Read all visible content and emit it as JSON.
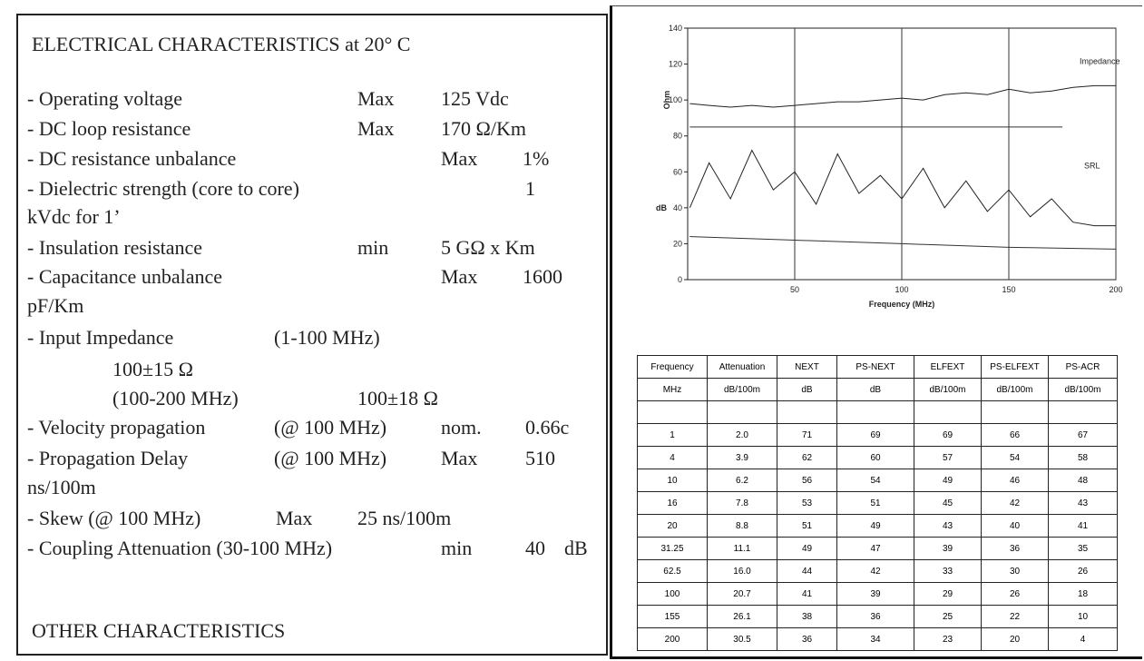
{
  "left": {
    "title": "ELECTRICAL CHARACTERISTICS at 20° C",
    "lines": [
      [
        "- Operating voltage",
        "Max",
        "125 Vdc"
      ],
      [
        "- DC loop resistance",
        "Max",
        "170 Ω/Km"
      ],
      [
        "- DC resistance unbalance",
        "Max",
        "1%"
      ],
      [
        "- Dielectric strength (core to core)",
        "1"
      ],
      [
        "kVdc for 1’"
      ],
      [
        "- Insulation resistance",
        "min",
        "5 GΩ x Km"
      ],
      [
        "- Capacitance unbalance",
        "Max",
        "1600"
      ],
      [
        "pF/Km"
      ],
      [
        "- Input Impedance",
        "(1-100 MHz)"
      ],
      [
        "100±15 Ω"
      ],
      [
        "(100-200 MHz)",
        "100±18 Ω"
      ],
      [
        "- Velocity propagation",
        "(@ 100 MHz)",
        "nom.",
        "0.66c"
      ],
      [
        "- Propagation Delay",
        "(@ 100 MHz)",
        "Max",
        "510"
      ],
      [
        "ns/100m"
      ],
      [
        "- Skew (@ 100 MHz)",
        "Max",
        "25 ns/100m"
      ],
      [
        "- Coupling Attenuation (30-100 MHz)",
        "min",
        "40",
        "dB"
      ]
    ],
    "footer": "OTHER CHARACTERISTICS"
  },
  "chart_data": {
    "type": "line",
    "xlabel": "Frequency (MHz)",
    "ylabel": "Ohm",
    "ylabel2": "dB",
    "xlim": [
      0,
      200
    ],
    "xticks": [
      50,
      100,
      150,
      200
    ],
    "ylim": [
      0,
      140
    ],
    "yticks": [
      0,
      20,
      40,
      60,
      80,
      100,
      120,
      140
    ],
    "grid": true,
    "series": [
      {
        "name": "Impedance",
        "color": "#222",
        "x": [
          1,
          10,
          20,
          30,
          40,
          50,
          60,
          70,
          80,
          90,
          100,
          110,
          120,
          130,
          140,
          150,
          160,
          170,
          180,
          190,
          200
        ],
        "values": [
          98,
          97,
          96,
          97,
          96,
          97,
          98,
          99,
          99,
          100,
          101,
          100,
          103,
          104,
          103,
          106,
          104,
          105,
          107,
          108,
          108
        ]
      },
      {
        "name": "SRL",
        "color": "#222",
        "x": [
          1,
          10,
          20,
          30,
          40,
          50,
          60,
          70,
          80,
          90,
          100,
          110,
          120,
          130,
          140,
          150,
          160,
          170,
          180,
          190,
          200
        ],
        "values": [
          40,
          65,
          45,
          72,
          50,
          60,
          42,
          70,
          48,
          58,
          45,
          62,
          40,
          55,
          38,
          50,
          35,
          45,
          32,
          30,
          30
        ]
      },
      {
        "color": "#333",
        "x": [
          1,
          175
        ],
        "values": [
          85,
          85
        ]
      },
      {
        "color": "#333",
        "x": [
          1,
          50,
          100,
          150,
          200
        ],
        "values": [
          24,
          22,
          20,
          18,
          17
        ]
      }
    ]
  },
  "table": {
    "header": [
      [
        "Frequency",
        "Attenuation",
        "NEXT",
        "PS-NEXT",
        "ELFEXT",
        "PS-ELFEXT",
        "PS-ACR"
      ],
      [
        "MHz",
        "dB/100m",
        "dB",
        "dB",
        "dB/100m",
        "dB/100m",
        "dB/100m"
      ]
    ],
    "rows": [
      [
        "1",
        "2.0",
        "71",
        "69",
        "69",
        "66",
        "67"
      ],
      [
        "4",
        "3.9",
        "62",
        "60",
        "57",
        "54",
        "58"
      ],
      [
        "10",
        "6.2",
        "56",
        "54",
        "49",
        "46",
        "48"
      ],
      [
        "16",
        "7.8",
        "53",
        "51",
        "45",
        "42",
        "43"
      ],
      [
        "20",
        "8.8",
        "51",
        "49",
        "43",
        "40",
        "41"
      ],
      [
        "31.25",
        "11.1",
        "49",
        "47",
        "39",
        "36",
        "35"
      ],
      [
        "62.5",
        "16.0",
        "44",
        "42",
        "33",
        "30",
        "26"
      ],
      [
        "100",
        "20.7",
        "41",
        "39",
        "29",
        "26",
        "18"
      ],
      [
        "155",
        "26.1",
        "38",
        "36",
        "25",
        "22",
        "10"
      ],
      [
        "200",
        "30.5",
        "36",
        "34",
        "23",
        "20",
        "4"
      ]
    ]
  }
}
